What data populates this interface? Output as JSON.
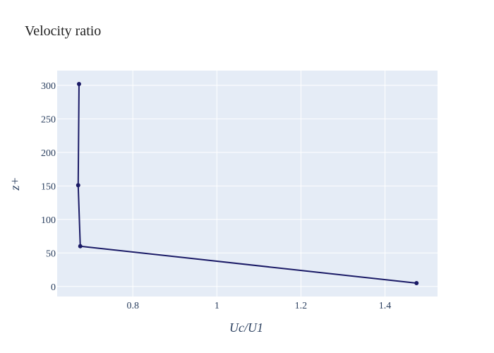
{
  "chart_data": {
    "type": "line",
    "title": "Velocity ratio",
    "xlabel": "Uc/U1",
    "ylabel": "z+",
    "x_ticks": [
      0.8,
      1,
      1.2,
      1.4
    ],
    "y_ticks": [
      0,
      50,
      100,
      150,
      200,
      250,
      300
    ],
    "xlim": [
      0.62,
      1.525
    ],
    "ylim": [
      -15,
      322
    ],
    "grid": true,
    "legend": "none",
    "series": [
      {
        "x": [
          1.475,
          0.675,
          0.67,
          0.672
        ],
        "y": [
          5,
          60,
          151,
          302
        ],
        "markers": true
      }
    ],
    "colors": {
      "plot_background": "#e5ecf6",
      "grid": "#ffffff",
      "line": "#1a1a66",
      "text": "#2a3f5f"
    }
  }
}
